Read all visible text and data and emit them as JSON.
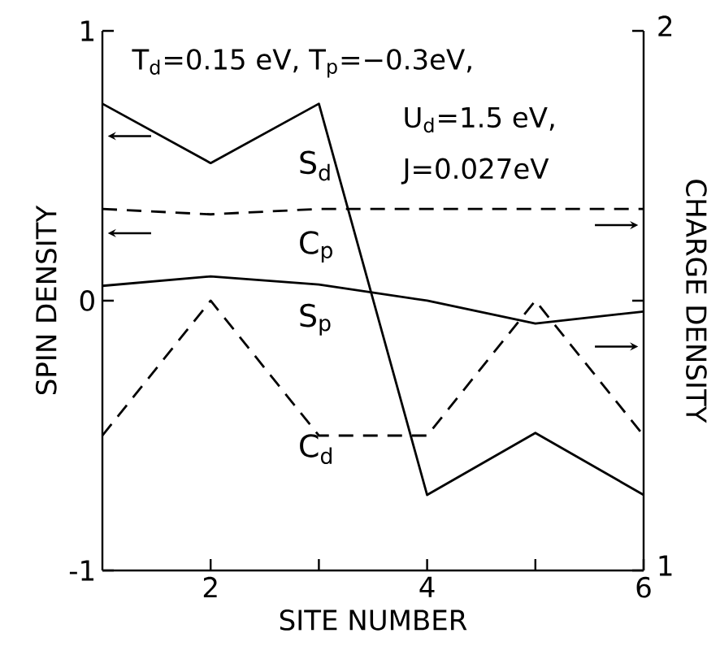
{
  "chart_data": {
    "type": "line",
    "xlabel": "SITE NUMBER",
    "ylabel": "SPIN DENSITY",
    "y2label": "CHARGE DENSITY",
    "x": [
      1,
      2,
      3,
      4,
      5,
      6
    ],
    "xlim": [
      1,
      6
    ],
    "xticks": [
      2,
      {
        "value": 3,
        "label": null
      },
      4,
      {
        "value": 5,
        "label": null
      },
      6
    ],
    "ylim": [
      -1,
      1
    ],
    "yticks": [
      -1,
      0,
      1
    ],
    "y2lim": [
      1,
      2
    ],
    "y2ticks": [
      1,
      {
        "value": 1.5,
        "label": null
      },
      2
    ],
    "marker": "none",
    "series": [
      {
        "name": "S$_{d}$",
        "color": "#000000",
        "line_style": "solid",
        "values": [
          0.73,
          0.51,
          0.73,
          -0.72,
          -0.49,
          -0.72
        ]
      },
      {
        "name": "S$_{p}$",
        "color": "#000000",
        "line_style": "solid",
        "values": [
          0.055,
          0.09,
          0.06,
          0.0,
          -0.085,
          -0.04
        ]
      },
      {
        "name": "C$_{p}$",
        "color": "#000000",
        "line_style": "dashed",
        "axis": "y2",
        "values": [
          1.67,
          1.66,
          1.67,
          1.67,
          1.67,
          1.67
        ]
      },
      {
        "name": "C$_{d}$",
        "color": "#000000",
        "line_style": "dashed",
        "axis": "y2",
        "values": [
          1.25,
          1.5,
          1.25,
          1.25,
          1.5,
          1.25
        ]
      }
    ],
    "annotations": [
      "T$_{d}$=0.15 eV, T$_{p}$=−0.3eV,",
      "U$_{d}$=1.5 eV,",
      "J=0.027eV"
    ]
  }
}
